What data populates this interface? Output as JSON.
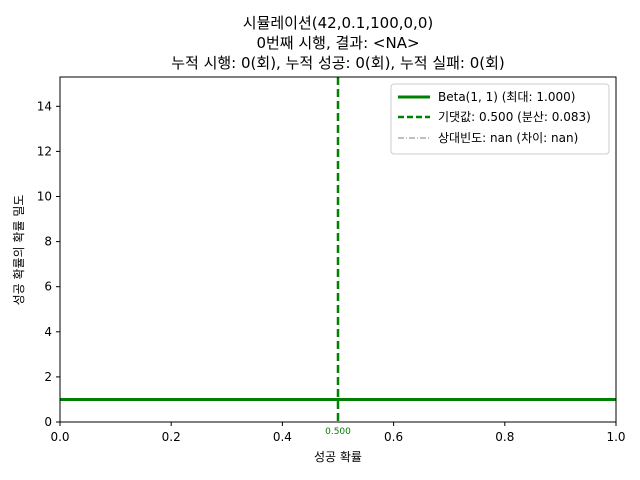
{
  "chart_data": {
    "type": "line",
    "title_lines": [
      "시뮬레이션(42,0.1,100,0,0)",
      "0번째 시행, 결과: <NA>",
      "누적 시행: 0(회), 누적 성공: 0(회), 누적 실패: 0(회)"
    ],
    "xlabel": "성공 확률",
    "ylabel": "성공 확률의 확률 밀도",
    "xlim": [
      0,
      1
    ],
    "ylim": [
      0,
      15.3
    ],
    "xticks": [
      0.0,
      0.2,
      0.4,
      0.6,
      0.8,
      1.0
    ],
    "xtick_labels": [
      "0.0",
      "0.2",
      "0.4",
      "0.6",
      "0.8",
      "1.0"
    ],
    "yticks": [
      0,
      2,
      4,
      6,
      8,
      10,
      12,
      14
    ],
    "ytick_labels": [
      "0",
      "2",
      "4",
      "6",
      "8",
      "10",
      "12",
      "14"
    ],
    "grid": false,
    "legend_position": "top-right",
    "series": [
      {
        "name": "Beta(1, 1) (최대: 1.000)",
        "kind": "solid",
        "color": "#008000",
        "x": [
          0.0,
          1.0
        ],
        "y": [
          1.0,
          1.0
        ]
      },
      {
        "name": "기댓값: 0.500 (분산: 0.083)",
        "kind": "dashed-vertical",
        "color": "#008000",
        "x": 0.5
      },
      {
        "name": "상대빈도: nan (차이: nan)",
        "kind": "dashdot",
        "color": "#808080"
      }
    ],
    "annotations": [
      {
        "text": "0.500",
        "x": 0.5,
        "color": "#008000"
      }
    ]
  }
}
